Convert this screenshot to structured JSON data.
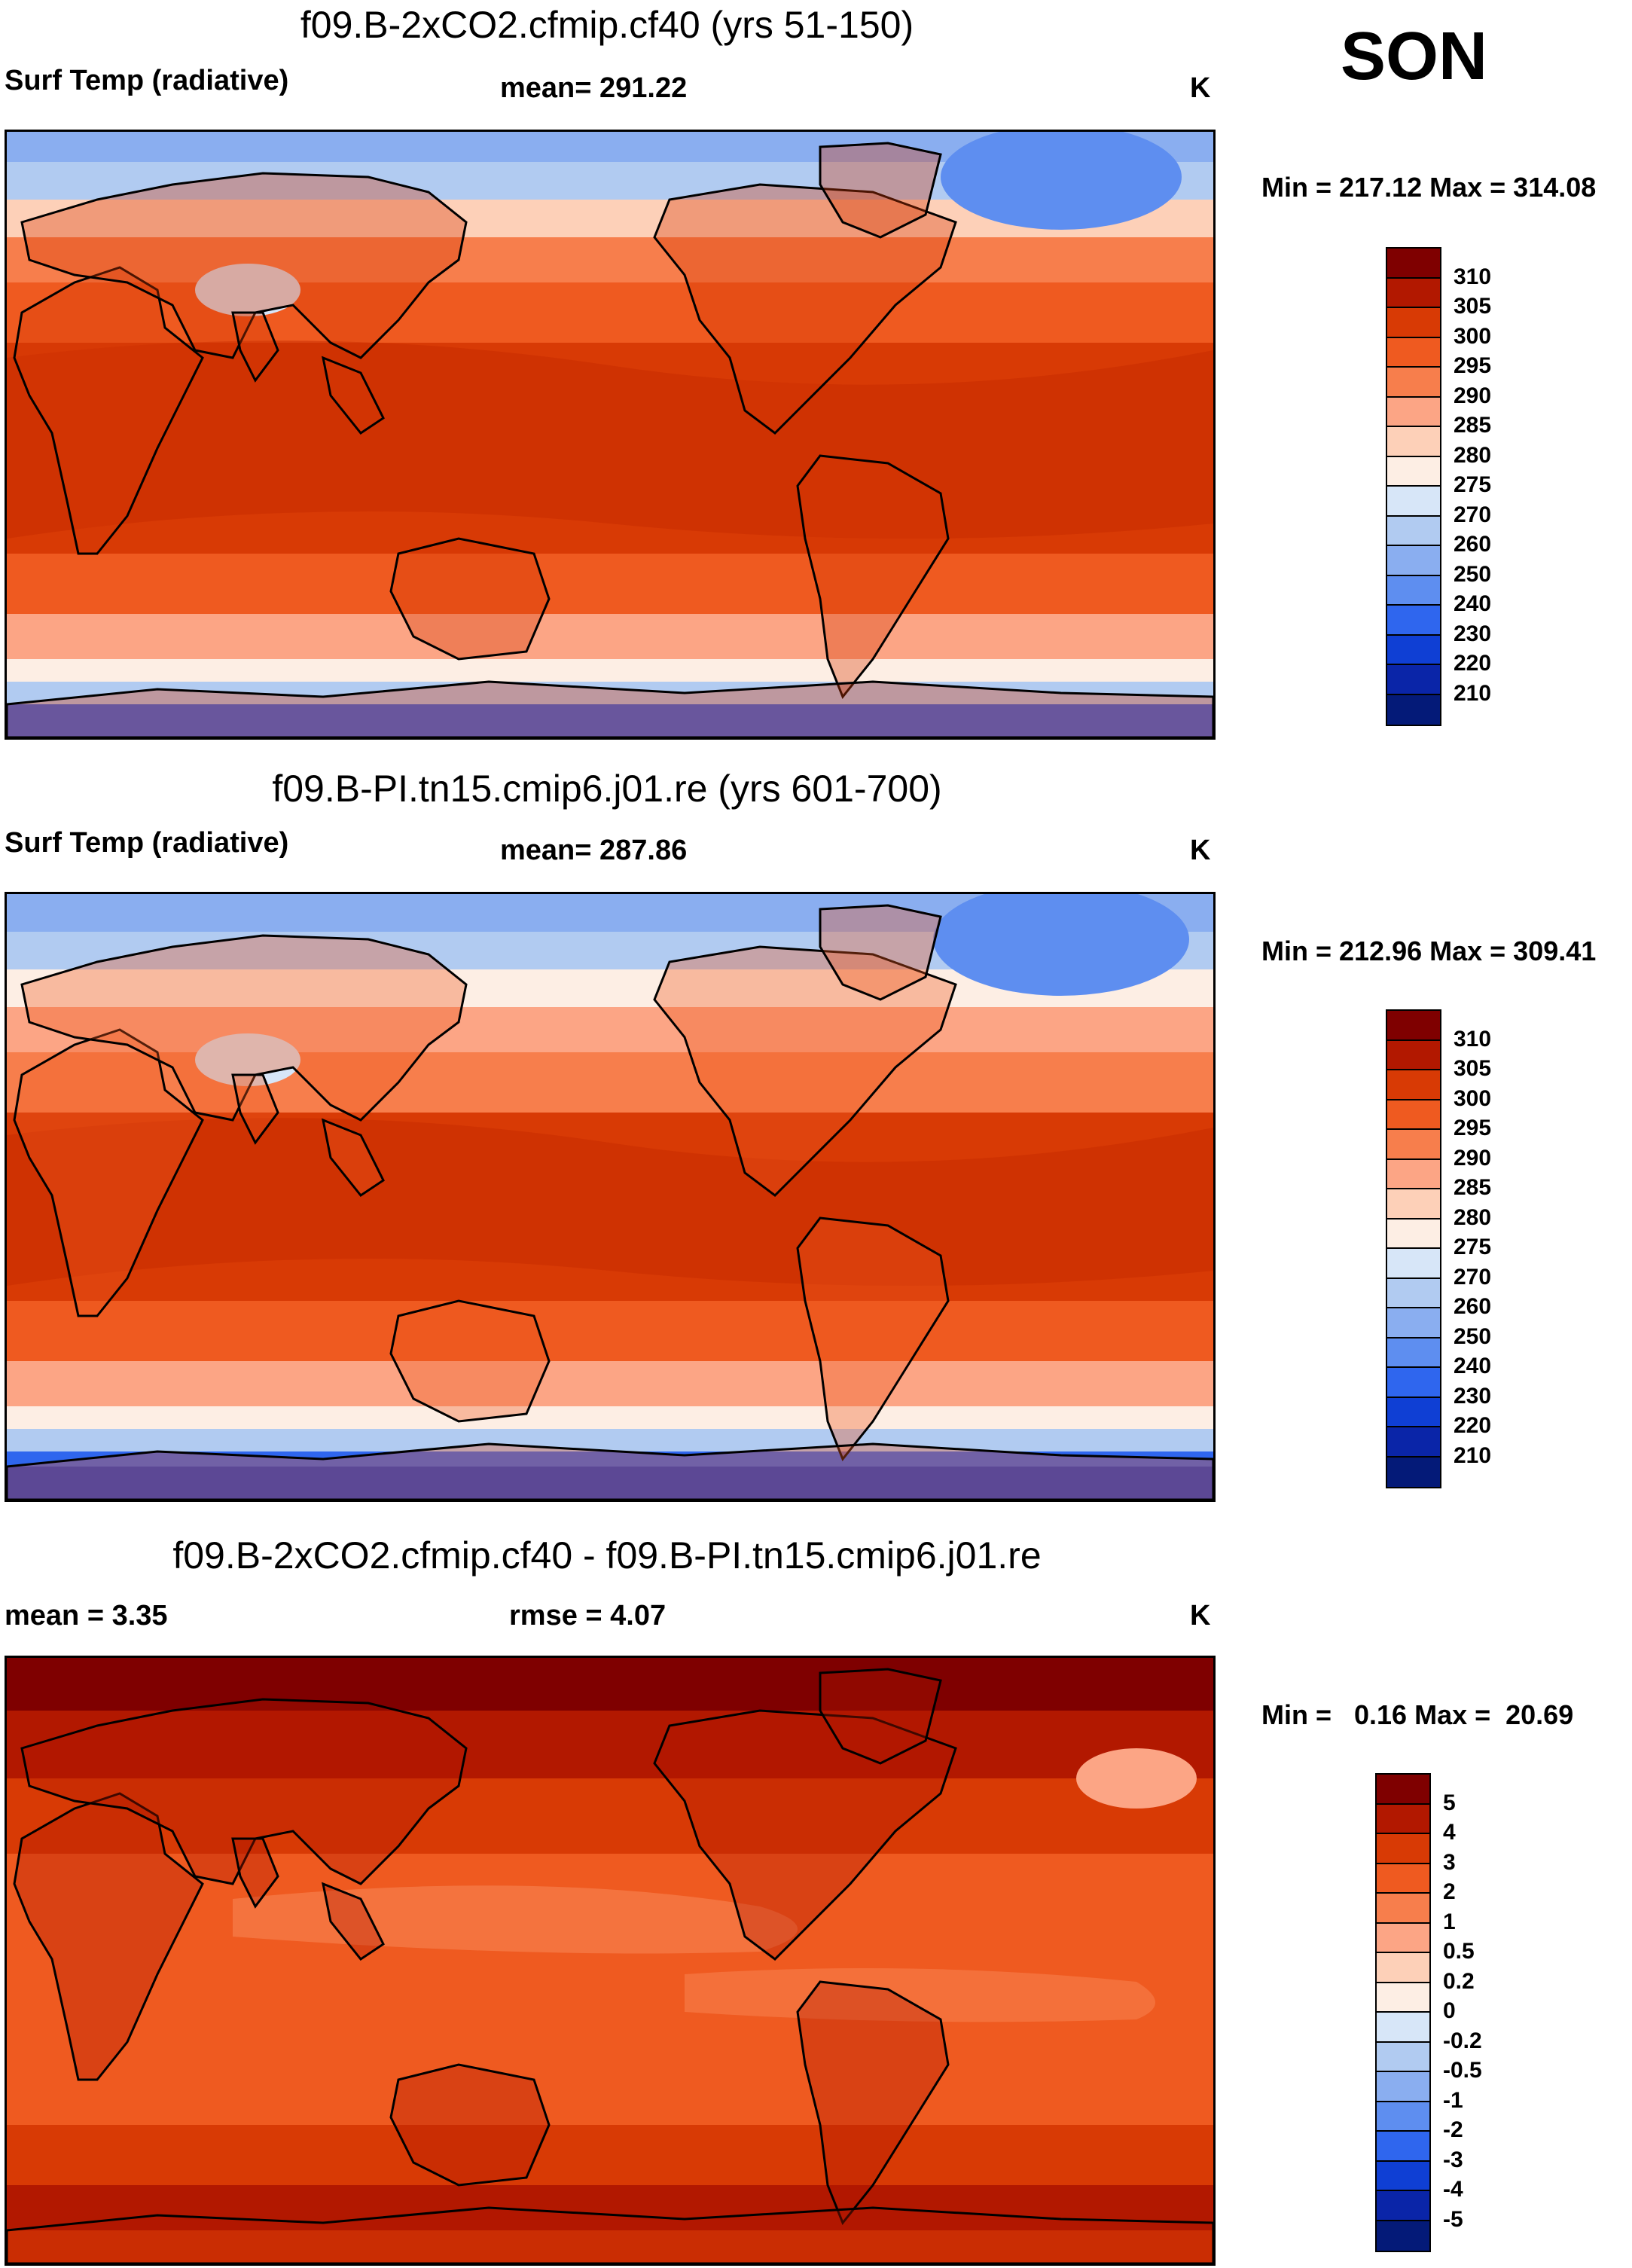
{
  "season": "SON",
  "panels": [
    {
      "title": "f09.B-2xCO2.cfmip.cf40 (yrs 51-150)",
      "left_label": "Surf Temp (radiative)",
      "center_label": "mean= 291.22",
      "units": "K",
      "minmax": "Min = 217.12 Max = 314.08",
      "colorbar_labels": [
        "310",
        "305",
        "300",
        "295",
        "290",
        "285",
        "280",
        "275",
        "270",
        "260",
        "250",
        "240",
        "230",
        "220",
        "210"
      ],
      "colors": [
        "#7f0000",
        "#b21800",
        "#d83a05",
        "#ef5a20",
        "#f77e4c",
        "#fca585",
        "#fdd0b8",
        "#fdeee4",
        "#d7e6f8",
        "#b1cbf1",
        "#8aaef0",
        "#5e8ef0",
        "#2f66ee",
        "#0f3fd4",
        "#0a25a8",
        "#041a78"
      ]
    },
    {
      "title": "f09.B-PI.tn15.cmip6.j01.re (yrs 601-700)",
      "left_label": "Surf Temp (radiative)",
      "center_label": "mean= 287.86",
      "units": "K",
      "minmax": "Min = 212.96 Max = 309.41",
      "colorbar_labels": [
        "310",
        "305",
        "300",
        "295",
        "290",
        "285",
        "280",
        "275",
        "270",
        "260",
        "250",
        "240",
        "230",
        "220",
        "210"
      ],
      "colors": [
        "#7f0000",
        "#b21800",
        "#d83a05",
        "#ef5a20",
        "#f77e4c",
        "#fca585",
        "#fdd0b8",
        "#fdeee4",
        "#d7e6f8",
        "#b1cbf1",
        "#8aaef0",
        "#5e8ef0",
        "#2f66ee",
        "#0f3fd4",
        "#0a25a8",
        "#041a78"
      ]
    },
    {
      "title": "f09.B-2xCO2.cfmip.cf40 - f09.B-PI.tn15.cmip6.j01.re",
      "left_label": "mean =   3.35",
      "center_label": "rmse =    4.07",
      "units": "K",
      "minmax": "Min =   0.16 Max =  20.69",
      "colorbar_labels": [
        "5",
        "4",
        "3",
        "2",
        "1",
        "0.5",
        "0.2",
        "0",
        "-0.2",
        "-0.5",
        "-1",
        "-2",
        "-3",
        "-4",
        "-5"
      ],
      "colors": [
        "#7f0000",
        "#b21800",
        "#d83a05",
        "#ef5a20",
        "#f77e4c",
        "#fca585",
        "#fdd0b8",
        "#fdeee4",
        "#d7e6f8",
        "#b1cbf1",
        "#8aaef0",
        "#5e8ef0",
        "#2f66ee",
        "#0f3fd4",
        "#0a25a8",
        "#041a78"
      ]
    }
  ]
}
